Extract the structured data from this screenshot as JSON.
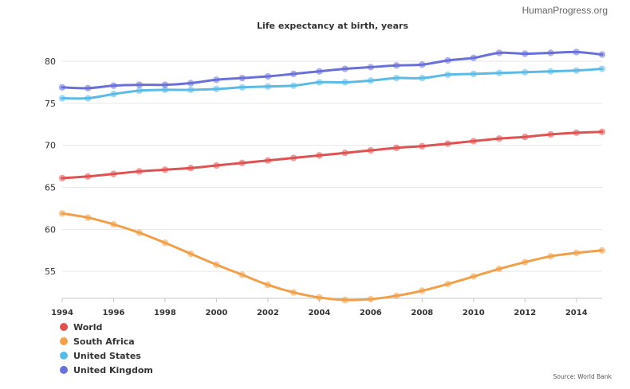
{
  "header": {
    "brand": "HumanProgress.org"
  },
  "chart_data": {
    "type": "line",
    "title": "Life expectancy at birth, years",
    "xlabel": "",
    "ylabel": "",
    "source": "Source: World Bank",
    "x": [
      1994,
      1995,
      1996,
      1997,
      1998,
      1999,
      2000,
      2001,
      2002,
      2003,
      2004,
      2005,
      2006,
      2007,
      2008,
      2009,
      2010,
      2011,
      2012,
      2013,
      2014,
      2015
    ],
    "xlim": [
      1994,
      2015
    ],
    "ylim": [
      51.8,
      81.8
    ],
    "x_ticks": [
      1994,
      1996,
      1998,
      2000,
      2002,
      2004,
      2006,
      2008,
      2010,
      2012,
      2014
    ],
    "y_ticks": [
      55,
      60,
      65,
      70,
      75,
      80
    ],
    "grid": true,
    "legend_position": "bottom-left",
    "series": [
      {
        "name": "World",
        "color": "#e05252",
        "values": [
          66.1,
          66.3,
          66.6,
          66.9,
          67.1,
          67.3,
          67.6,
          67.9,
          68.2,
          68.5,
          68.8,
          69.1,
          69.4,
          69.7,
          69.9,
          70.2,
          70.5,
          70.8,
          71.0,
          71.3,
          71.5,
          71.6
        ]
      },
      {
        "name": "South Africa",
        "color": "#f0a04b",
        "values": [
          61.9,
          61.4,
          60.6,
          59.6,
          58.4,
          57.1,
          55.8,
          54.6,
          53.4,
          52.5,
          51.9,
          51.6,
          51.7,
          52.1,
          52.7,
          53.5,
          54.4,
          55.3,
          56.1,
          56.8,
          57.2,
          57.5
        ]
      },
      {
        "name": "United States",
        "color": "#5bbbe6",
        "values": [
          75.6,
          75.6,
          76.1,
          76.5,
          76.6,
          76.6,
          76.7,
          76.9,
          77.0,
          77.1,
          77.5,
          77.5,
          77.7,
          78.0,
          78.0,
          78.4,
          78.5,
          78.6,
          78.7,
          78.8,
          78.9,
          79.1
        ]
      },
      {
        "name": "United Kingdom",
        "color": "#6a70d9",
        "values": [
          76.9,
          76.8,
          77.1,
          77.2,
          77.2,
          77.4,
          77.8,
          78.0,
          78.2,
          78.5,
          78.8,
          79.1,
          79.3,
          79.5,
          79.6,
          80.1,
          80.4,
          81.0,
          80.9,
          81.0,
          81.1,
          80.8
        ]
      }
    ]
  }
}
